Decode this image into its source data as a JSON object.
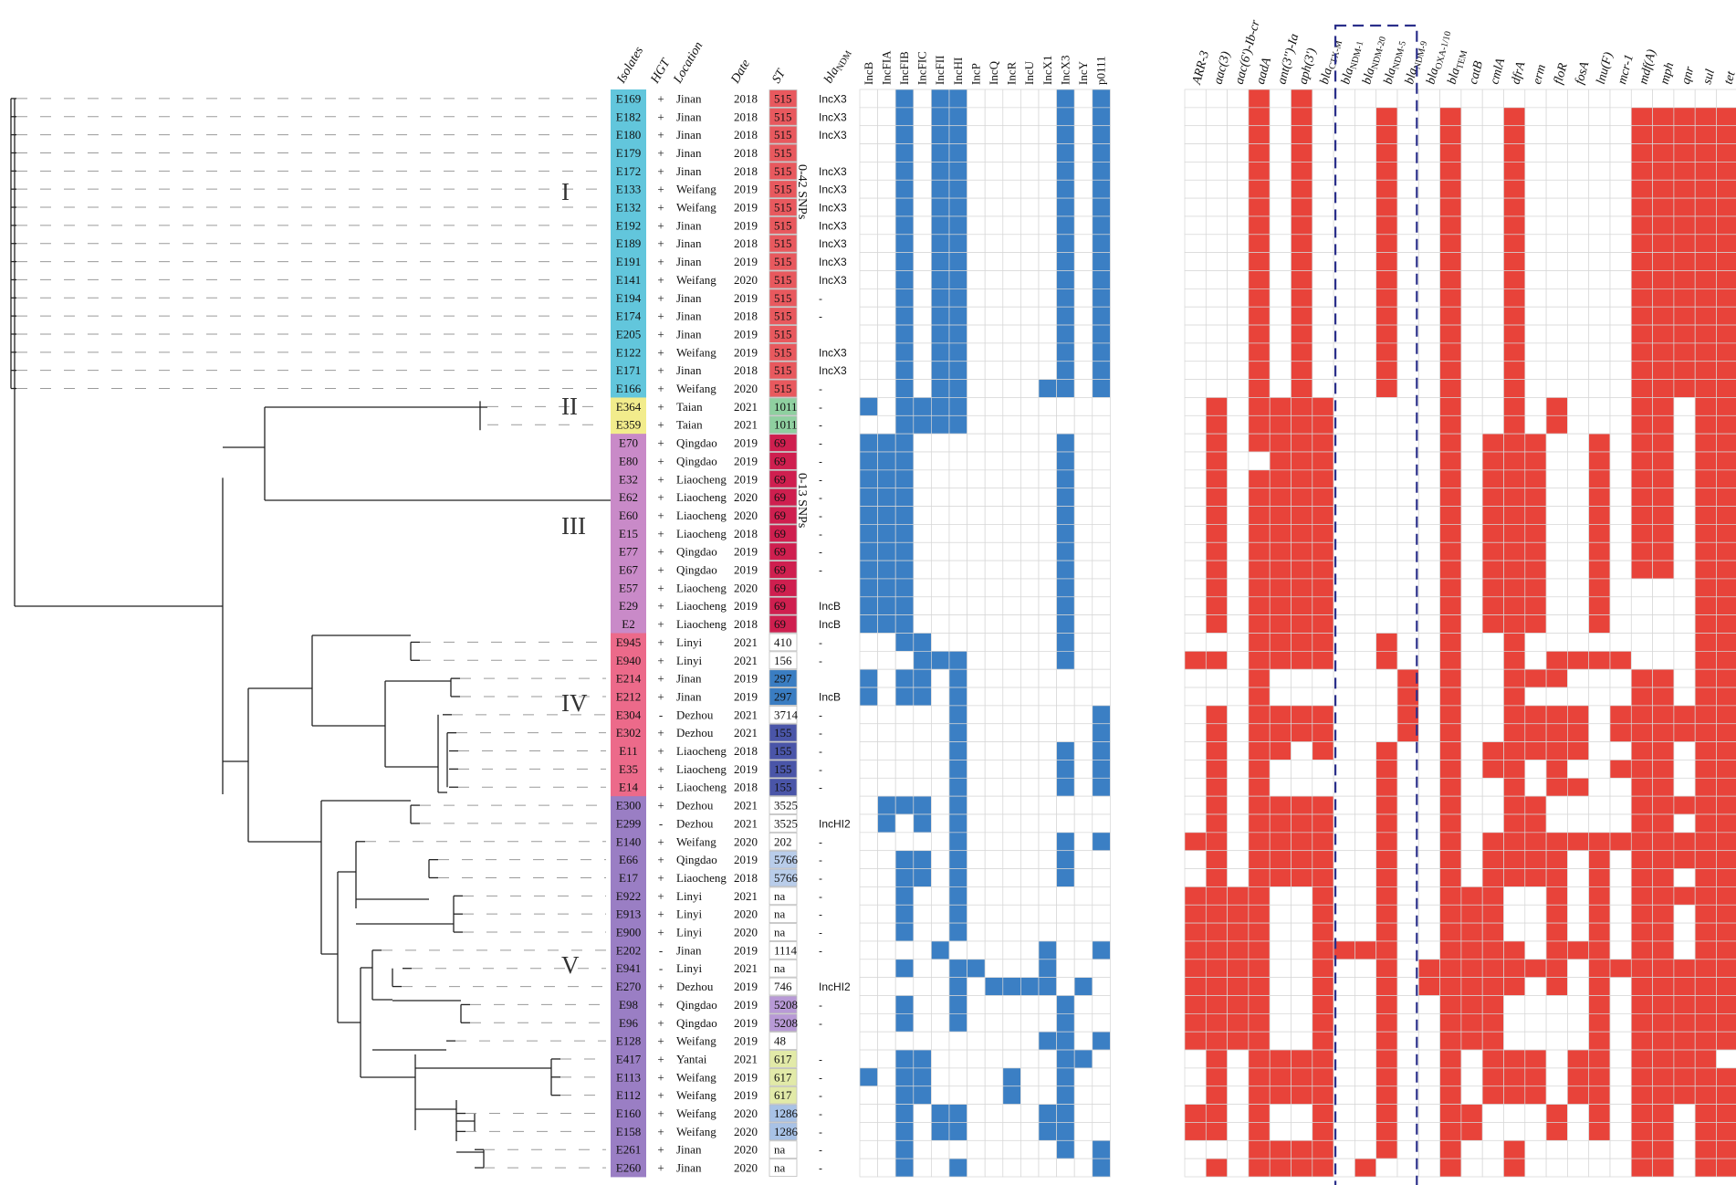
{
  "clades": [
    "I",
    "II",
    "III",
    "IV",
    "V"
  ],
  "snp_labels": [
    "0-42 SNPs",
    "0-13 SNPs"
  ],
  "columns": {
    "isolates": "Isolates",
    "hgt": "HGT",
    "location": "Location",
    "date": "Date",
    "st": "ST",
    "bla": "bla",
    "bla_sub": "NDM"
  },
  "plasmids": [
    "IncB",
    "IncFIA",
    "IncFIB",
    "IncFIC",
    "IncFII",
    "IncHI",
    "IncP",
    "IncQ",
    "IncR",
    "IncU",
    "IncX1",
    "IncX3",
    "IncY",
    "p0111"
  ],
  "genes": [
    {
      "main": "ARR-3",
      "sub": ""
    },
    {
      "main": "aac(3)",
      "sub": ""
    },
    {
      "main": "aac(6')-Ib-cr",
      "sub": ""
    },
    {
      "main": "aadA",
      "sub": ""
    },
    {
      "main": "ant(3'')-Ia",
      "sub": ""
    },
    {
      "main": "aph(3')",
      "sub": ""
    },
    {
      "main": "bla",
      "sub": "CTX-M"
    },
    {
      "main": "bla",
      "sub": "NDM-1"
    },
    {
      "main": "bla",
      "sub": "NDM-20"
    },
    {
      "main": "bla",
      "sub": "NDM-5"
    },
    {
      "main": "bla",
      "sub": "NDM-9"
    },
    {
      "main": "bla",
      "sub": "OXA-1/10"
    },
    {
      "main": "bla",
      "sub": "TEM"
    },
    {
      "main": "catB",
      "sub": ""
    },
    {
      "main": "cmlA",
      "sub": ""
    },
    {
      "main": "dfrA",
      "sub": ""
    },
    {
      "main": "erm",
      "sub": ""
    },
    {
      "main": "floR",
      "sub": ""
    },
    {
      "main": "fosA",
      "sub": ""
    },
    {
      "main": "lnu(F)",
      "sub": ""
    },
    {
      "main": "mcr-1",
      "sub": ""
    },
    {
      "main": "mdf(A)",
      "sub": ""
    },
    {
      "main": "mph",
      "sub": ""
    },
    {
      "main": "qnr",
      "sub": ""
    },
    {
      "main": "sul",
      "sub": ""
    },
    {
      "main": "tet",
      "sub": ""
    }
  ],
  "colors": {
    "plasmid_present": "#3b7fc4",
    "gene_present": "#e8433a",
    "grid": "#d6d6d6",
    "clade_I": "#62c6dc",
    "clade_II": "#f2ec8c",
    "clade_III": "#c98ac8",
    "clade_IV": "#ec6a8a",
    "clade_V": "#9a7ec4",
    "dash_box": "#2a2f8a",
    "st_colors": {
      "515": "#e8595e",
      "1011": "#8fd0a0",
      "69": "#cf1f4f",
      "297": "#3a7dc2",
      "155": "#4a55a8",
      "5766": "#b9cdea",
      "5208": "#b89ad6",
      "617": "#e2eaa8",
      "1286": "#a8c2e6"
    }
  },
  "rows": [
    {
      "id": "E169",
      "hgt": "+",
      "loc": "Jinan",
      "date": "2018",
      "st": "515",
      "bla": "IncX3",
      "clade": "I",
      "pl": "00101100000101",
      "ge": "00010100000000000000000000"
    },
    {
      "id": "E182",
      "hgt": "+",
      "loc": "Jinan",
      "date": "2018",
      "st": "515",
      "bla": "IncX3",
      "clade": "I",
      "pl": "00101100000101",
      "ge": "00010100010010010000011111"
    },
    {
      "id": "E180",
      "hgt": "+",
      "loc": "Jinan",
      "date": "2018",
      "st": "515",
      "bla": "IncX3",
      "clade": "I",
      "pl": "00101100000101",
      "ge": "00010100010010010000011111"
    },
    {
      "id": "E179",
      "hgt": "+",
      "loc": "Jinan",
      "date": "2018",
      "st": "515",
      "bla": "",
      "clade": "I",
      "pl": "00101100000101",
      "ge": "00010100010010010000011111"
    },
    {
      "id": "E172",
      "hgt": "+",
      "loc": "Jinan",
      "date": "2018",
      "st": "515",
      "bla": "IncX3",
      "clade": "I",
      "pl": "00101100000101",
      "ge": "00010100010010010000011111"
    },
    {
      "id": "E133",
      "hgt": "+",
      "loc": "Weifang",
      "date": "2019",
      "st": "515",
      "bla": "IncX3",
      "clade": "I",
      "pl": "00101100000101",
      "ge": "00010100010010010000011111"
    },
    {
      "id": "E132",
      "hgt": "+",
      "loc": "Weifang",
      "date": "2019",
      "st": "515",
      "bla": "IncX3",
      "clade": "I",
      "pl": "00101100000101",
      "ge": "00010100010010010000011111"
    },
    {
      "id": "E192",
      "hgt": "+",
      "loc": "Jinan",
      "date": "2019",
      "st": "515",
      "bla": "IncX3",
      "clade": "I",
      "pl": "00101100000101",
      "ge": "00010100010010010000011111"
    },
    {
      "id": "E189",
      "hgt": "+",
      "loc": "Jinan",
      "date": "2018",
      "st": "515",
      "bla": "IncX3",
      "clade": "I",
      "pl": "00101100000101",
      "ge": "00010100010010010000011111"
    },
    {
      "id": "E191",
      "hgt": "+",
      "loc": "Jinan",
      "date": "2019",
      "st": "515",
      "bla": "IncX3",
      "clade": "I",
      "pl": "00101100000101",
      "ge": "00010100010010010000011111"
    },
    {
      "id": "E141",
      "hgt": "+",
      "loc": "Weifang",
      "date": "2020",
      "st": "515",
      "bla": "IncX3",
      "clade": "I",
      "pl": "00101100000101",
      "ge": "00010100010010010000011111"
    },
    {
      "id": "E194",
      "hgt": "+",
      "loc": "Jinan",
      "date": "2019",
      "st": "515",
      "bla": "-",
      "clade": "I",
      "pl": "00101100000101",
      "ge": "00010100010010010000011111"
    },
    {
      "id": "E174",
      "hgt": "+",
      "loc": "Jinan",
      "date": "2018",
      "st": "515",
      "bla": "-",
      "clade": "I",
      "pl": "00101100000101",
      "ge": "00010100010010010000011111"
    },
    {
      "id": "E205",
      "hgt": "+",
      "loc": "Jinan",
      "date": "2019",
      "st": "515",
      "bla": "",
      "clade": "I",
      "pl": "00101100000101",
      "ge": "00010100010010010000011111"
    },
    {
      "id": "E122",
      "hgt": "+",
      "loc": "Weifang",
      "date": "2019",
      "st": "515",
      "bla": "IncX3",
      "clade": "I",
      "pl": "00101100000101",
      "ge": "00010100010010010000011111"
    },
    {
      "id": "E171",
      "hgt": "+",
      "loc": "Jinan",
      "date": "2018",
      "st": "515",
      "bla": "IncX3",
      "clade": "I",
      "pl": "00101100000101",
      "ge": "00010100010010010000011111"
    },
    {
      "id": "E166",
      "hgt": "+",
      "loc": "Weifang",
      "date": "2020",
      "st": "515",
      "bla": "-",
      "clade": "I",
      "pl": "00101100001101",
      "ge": "00010100010010010000011111"
    },
    {
      "id": "E364",
      "hgt": "+",
      "loc": "Taian",
      "date": "2021",
      "st": "1011",
      "bla": "-",
      "clade": "II",
      "pl": "10111100000000",
      "ge": "01011110000010010100011011"
    },
    {
      "id": "E359",
      "hgt": "+",
      "loc": "Taian",
      "date": "2021",
      "st": "1011",
      "bla": "-",
      "clade": "II",
      "pl": "00111100000000",
      "ge": "01011110000010010100011011"
    },
    {
      "id": "E70",
      "hgt": "+",
      "loc": "Qingdao",
      "date": "2019",
      "st": "69",
      "bla": "-",
      "clade": "III",
      "pl": "11100000000100",
      "ge": "01011110000010111001011011"
    },
    {
      "id": "E80",
      "hgt": "+",
      "loc": "Qingdao",
      "date": "2019",
      "st": "69",
      "bla": "-",
      "clade": "III",
      "pl": "11100000000100",
      "ge": "01001110000010111001011011"
    },
    {
      "id": "E32",
      "hgt": "+",
      "loc": "Liaocheng",
      "date": "2019",
      "st": "69",
      "bla": "-",
      "clade": "III",
      "pl": "11100000000100",
      "ge": "01011110000010111001011011"
    },
    {
      "id": "E62",
      "hgt": "+",
      "loc": "Liaocheng",
      "date": "2020",
      "st": "69",
      "bla": "-",
      "clade": "III",
      "pl": "11100000000100",
      "ge": "01011110000010111001011011"
    },
    {
      "id": "E60",
      "hgt": "+",
      "loc": "Liaocheng",
      "date": "2020",
      "st": "69",
      "bla": "-",
      "clade": "III",
      "pl": "11100000000100",
      "ge": "01011110000010111001011011"
    },
    {
      "id": "E15",
      "hgt": "+",
      "loc": "Liaocheng",
      "date": "2018",
      "st": "69",
      "bla": "-",
      "clade": "III",
      "pl": "11100000000100",
      "ge": "01011110000010111001011011"
    },
    {
      "id": "E77",
      "hgt": "+",
      "loc": "Qingdao",
      "date": "2019",
      "st": "69",
      "bla": "-",
      "clade": "III",
      "pl": "11100000000100",
      "ge": "01011110000010111001011011"
    },
    {
      "id": "E67",
      "hgt": "+",
      "loc": "Qingdao",
      "date": "2019",
      "st": "69",
      "bla": "-",
      "clade": "III",
      "pl": "11100000000100",
      "ge": "01011110000010111001011011"
    },
    {
      "id": "E57",
      "hgt": "+",
      "loc": "Liaocheng",
      "date": "2020",
      "st": "69",
      "bla": "",
      "clade": "III",
      "pl": "11100000000100",
      "ge": "01011110000010111001000011"
    },
    {
      "id": "E29",
      "hgt": "+",
      "loc": "Liaocheng",
      "date": "2019",
      "st": "69",
      "bla": "IncB",
      "clade": "III",
      "pl": "11100000000100",
      "ge": "01011110000010111001000011"
    },
    {
      "id": "E2",
      "hgt": "+",
      "loc": "Liaocheng",
      "date": "2018",
      "st": "69",
      "bla": "IncB",
      "clade": "III",
      "pl": "11100000000100",
      "ge": "01011110000010111001000011"
    },
    {
      "id": "E945",
      "hgt": "+",
      "loc": "Linyi",
      "date": "2021",
      "st": "410",
      "bla": "-",
      "clade": "IV",
      "pl": "00110000000100",
      "ge": "00011110010010010000000011"
    },
    {
      "id": "E940",
      "hgt": "+",
      "loc": "Linyi",
      "date": "2021",
      "st": "156",
      "bla": "-",
      "clade": "IV",
      "pl": "00011100000100",
      "ge": "11011110010010010111100011"
    },
    {
      "id": "E214",
      "hgt": "+",
      "loc": "Jinan",
      "date": "2019",
      "st": "297",
      "bla": "",
      "clade": "IV",
      "pl": "10110100000000",
      "ge": "00010000001010011100011011"
    },
    {
      "id": "E212",
      "hgt": "+",
      "loc": "Jinan",
      "date": "2019",
      "st": "297",
      "bla": "IncB",
      "clade": "IV",
      "pl": "10110100000000",
      "ge": "00010000001010010000011011"
    },
    {
      "id": "E304",
      "hgt": "-",
      "loc": "Dezhou",
      "date": "2021",
      "st": "3714",
      "bla": "-",
      "clade": "IV",
      "pl": "00000100000001",
      "ge": "01011110001010011110111111"
    },
    {
      "id": "E302",
      "hgt": "+",
      "loc": "Dezhou",
      "date": "2021",
      "st": "155",
      "bla": "-",
      "clade": "IV",
      "pl": "00000100000001",
      "ge": "01011110001010011110111111"
    },
    {
      "id": "E11",
      "hgt": "+",
      "loc": "Liaocheng",
      "date": "2018",
      "st": "155",
      "bla": "-",
      "clade": "IV",
      "pl": "00000100000101",
      "ge": "01011010010010111110011011"
    },
    {
      "id": "E35",
      "hgt": "+",
      "loc": "Liaocheng",
      "date": "2019",
      "st": "155",
      "bla": "-",
      "clade": "IV",
      "pl": "00000100000101",
      "ge": "01010000010010110100111011"
    },
    {
      "id": "E14",
      "hgt": "+",
      "loc": "Liaocheng",
      "date": "2018",
      "st": "155",
      "bla": "-",
      "clade": "IV",
      "pl": "00000100000101",
      "ge": "01010000010010010110011011"
    },
    {
      "id": "E300",
      "hgt": "+",
      "loc": "Dezhou",
      "date": "2021",
      "st": "3525",
      "bla": "",
      "clade": "V",
      "pl": "01110100000000",
      "ge": "01011110010010011000011111"
    },
    {
      "id": "E299",
      "hgt": "-",
      "loc": "Dezhou",
      "date": "2021",
      "st": "3525",
      "bla": "IncHI2",
      "clade": "V",
      "pl": "01010100000000",
      "ge": "01011110010010011000011011"
    },
    {
      "id": "E140",
      "hgt": "+",
      "loc": "Weifang",
      "date": "2020",
      "st": "202",
      "bla": "-",
      "clade": "V",
      "pl": "00000100000101",
      "ge": "11011110010010111111111111"
    },
    {
      "id": "E66",
      "hgt": "+",
      "loc": "Qingdao",
      "date": "2019",
      "st": "5766",
      "bla": "-",
      "clade": "V",
      "pl": "00110100000100",
      "ge": "01011110010010111101011111"
    },
    {
      "id": "E17",
      "hgt": "+",
      "loc": "Liaocheng",
      "date": "2018",
      "st": "5766",
      "bla": "-",
      "clade": "V",
      "pl": "00110100000100",
      "ge": "01011110010010111101011011"
    },
    {
      "id": "E922",
      "hgt": "+",
      "loc": "Linyi",
      "date": "2021",
      "st": "na",
      "bla": "-",
      "clade": "V",
      "pl": "00100100000000",
      "ge": "11110010010011100101011111"
    },
    {
      "id": "E913",
      "hgt": "+",
      "loc": "Linyi",
      "date": "2020",
      "st": "na",
      "bla": "-",
      "clade": "V",
      "pl": "00100100000000",
      "ge": "11110010010011100101011011"
    },
    {
      "id": "E900",
      "hgt": "+",
      "loc": "Linyi",
      "date": "2020",
      "st": "na",
      "bla": "-",
      "clade": "V",
      "pl": "00100100000000",
      "ge": "11110010010011100101011011"
    },
    {
      "id": "E202",
      "hgt": "-",
      "loc": "Jinan",
      "date": "2019",
      "st": "1114",
      "bla": "-",
      "clade": "V",
      "pl": "00001000001001",
      "ge": "11110011110011110111011011"
    },
    {
      "id": "E941",
      "hgt": "-",
      "loc": "Linyi",
      "date": "2021",
      "st": "na",
      "bla": "",
      "clade": "V",
      "pl": "00100110001000",
      "ge": "11110010010111111101111111"
    },
    {
      "id": "E270",
      "hgt": "+",
      "loc": "Dezhou",
      "date": "2019",
      "st": "746",
      "bla": "IncHI2",
      "clade": "V",
      "pl": "00000101111010",
      "ge": "11110010010111110101011111"
    },
    {
      "id": "E98",
      "hgt": "+",
      "loc": "Qingdao",
      "date": "2019",
      "st": "5208",
      "bla": "-",
      "clade": "V",
      "pl": "00100100000100",
      "ge": "11110010010011100001011111"
    },
    {
      "id": "E96",
      "hgt": "+",
      "loc": "Qingdao",
      "date": "2019",
      "st": "5208",
      "bla": "-",
      "clade": "V",
      "pl": "00100100000100",
      "ge": "11110010010011100001011111"
    },
    {
      "id": "E128",
      "hgt": "+",
      "loc": "Weifang",
      "date": "2019",
      "st": "48",
      "bla": "",
      "clade": "V",
      "pl": "00000000001101",
      "ge": "11110010010011100001011111"
    },
    {
      "id": "E417",
      "hgt": "+",
      "loc": "Yantai",
      "date": "2021",
      "st": "617",
      "bla": "-",
      "clade": "V",
      "pl": "00110000000110",
      "ge": "01011110010010111011011110"
    },
    {
      "id": "E113",
      "hgt": "+",
      "loc": "Weifang",
      "date": "2019",
      "st": "617",
      "bla": "-",
      "clade": "V",
      "pl": "10110000100100",
      "ge": "01011110010010111011011111"
    },
    {
      "id": "E112",
      "hgt": "+",
      "loc": "Weifang",
      "date": "2019",
      "st": "617",
      "bla": "-",
      "clade": "V",
      "pl": "00110000100100",
      "ge": "01011110010010111011011111"
    },
    {
      "id": "E160",
      "hgt": "+",
      "loc": "Weifang",
      "date": "2020",
      "st": "1286",
      "bla": "-",
      "clade": "V",
      "pl": "00101100001100",
      "ge": "11010010010011000101011011"
    },
    {
      "id": "E158",
      "hgt": "+",
      "loc": "Weifang",
      "date": "2020",
      "st": "1286",
      "bla": "-",
      "clade": "V",
      "pl": "00101100001100",
      "ge": "11010010010011000101011011"
    },
    {
      "id": "E261",
      "hgt": "+",
      "loc": "Jinan",
      "date": "2020",
      "st": "na",
      "bla": "-",
      "clade": "V",
      "pl": "00100000000101",
      "ge": "00011110010010010000011011"
    },
    {
      "id": "E260",
      "hgt": "+",
      "loc": "Jinan",
      "date": "2020",
      "st": "na",
      "bla": "-",
      "clade": "V",
      "pl": "00100100000001",
      "ge": "01011110100010010000011011"
    }
  ]
}
